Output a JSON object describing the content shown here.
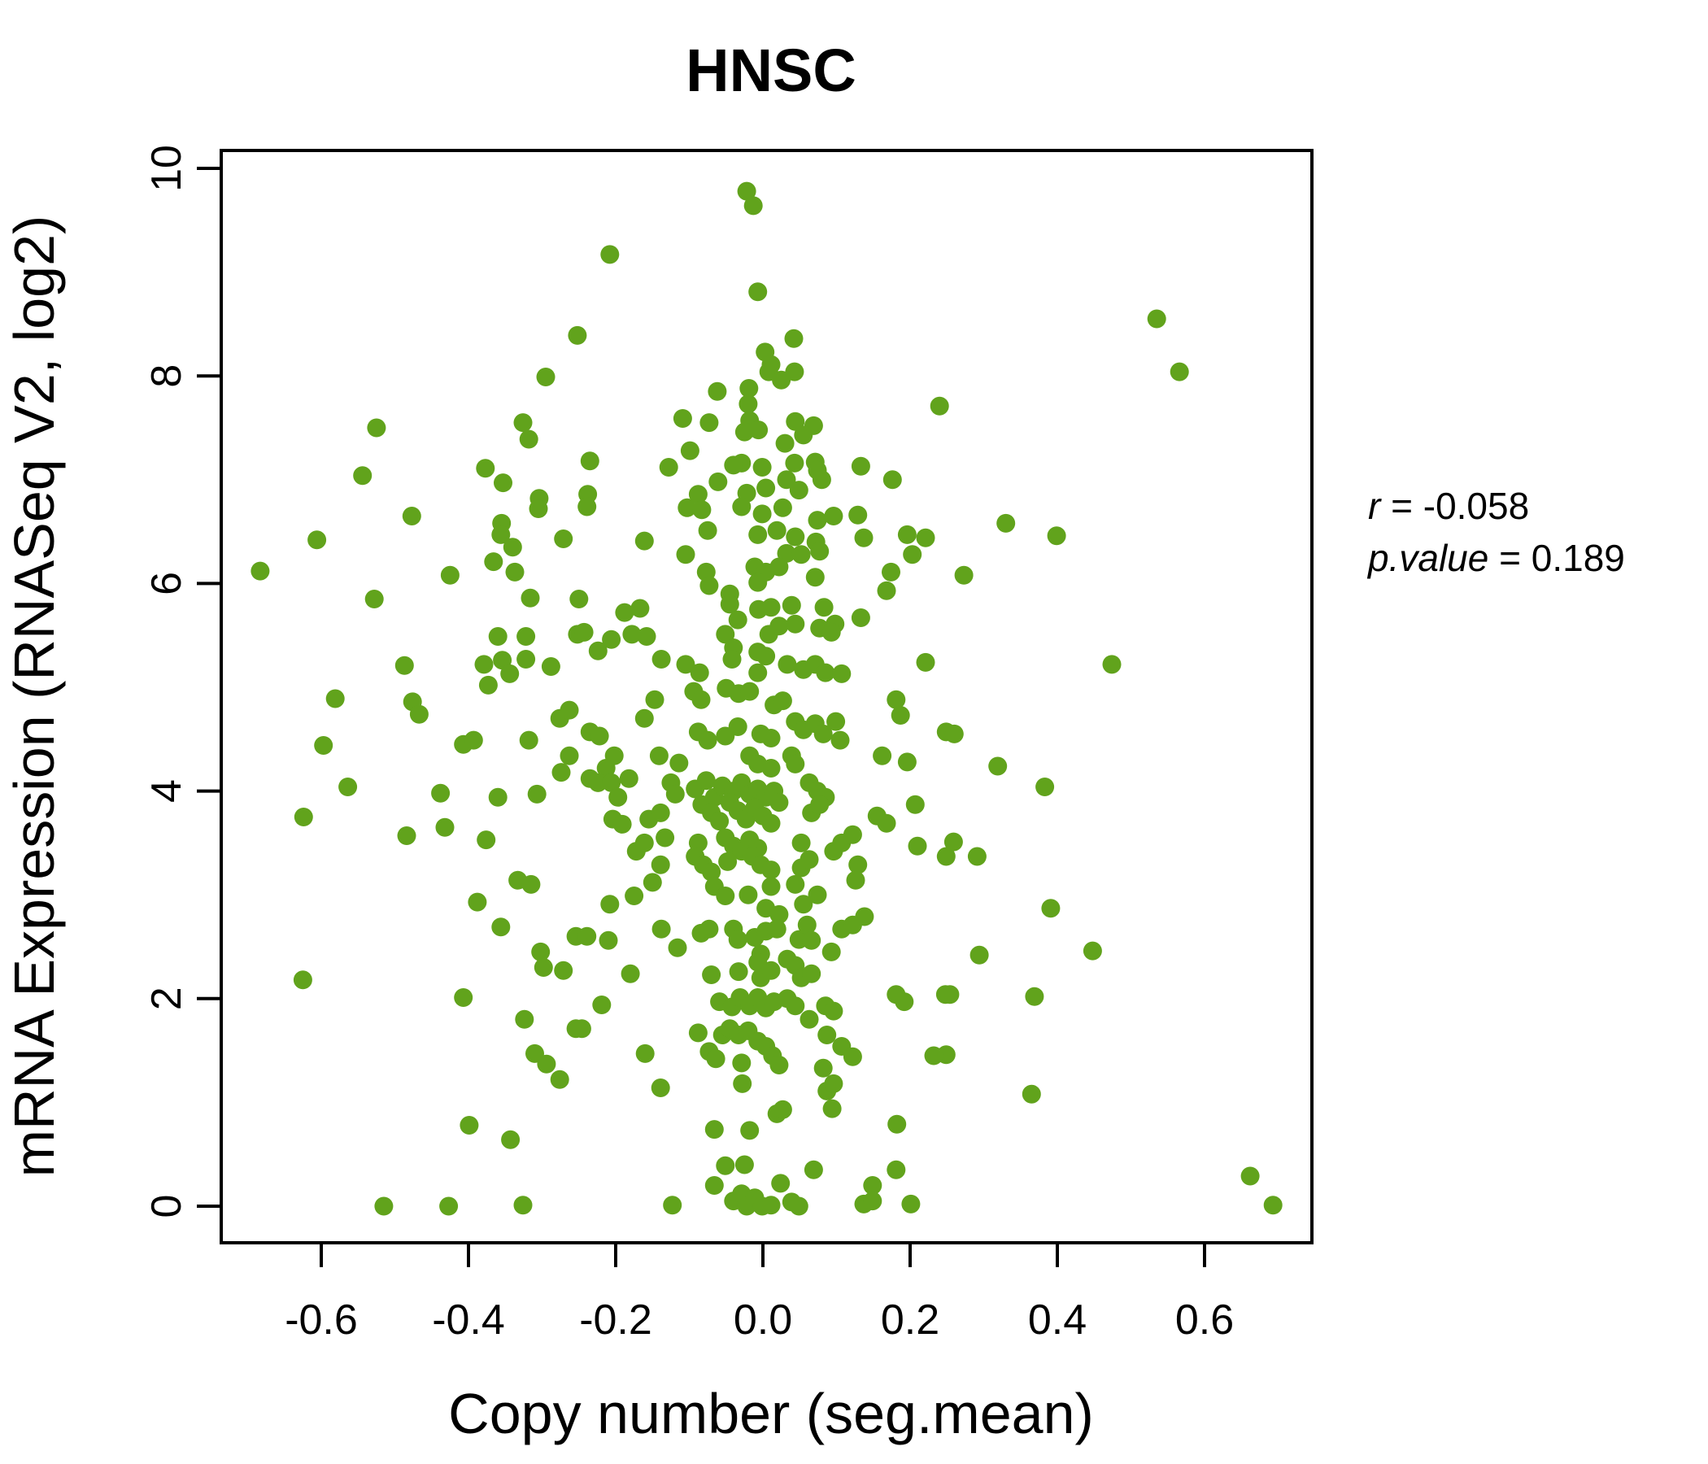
{
  "title": "HNSC",
  "colors": {
    "point": "#61A31C",
    "title": "#6BB12C",
    "axis": "#000000",
    "background": "#FFFFFF"
  },
  "annotation": {
    "r_label": "r",
    "r_rest": " = -0.058",
    "p_label": "p.value",
    "p_rest": " = 0.189"
  },
  "chart_data": {
    "type": "scatter",
    "title": "HNSC",
    "xlabel": "Copy number (seg.mean)",
    "ylabel": "mRNA Expression (RNASeq V2, log2)",
    "xlim": [
      -0.74,
      0.75
    ],
    "ylim": [
      -0.35,
      10.2
    ],
    "grid": false,
    "legend_position": "none",
    "correlation": {
      "r": -0.058,
      "p_value": 0.189
    },
    "xtick_values": [
      -0.6,
      -0.4,
      -0.2,
      0.0,
      0.2,
      0.4,
      0.6
    ],
    "xtick_labels": [
      "-0.6",
      "-0.4",
      "-0.2",
      "0.0",
      "0.2",
      "0.4",
      "0.6"
    ],
    "ytick_values": [
      0,
      2,
      4,
      6,
      8,
      10
    ],
    "ytick_labels": [
      "0",
      "2",
      "4",
      "6",
      "8",
      "10"
    ],
    "points": [
      [
        -0.252,
        8.39
      ],
      [
        -0.295,
        7.99
      ],
      [
        -0.326,
        7.55
      ],
      [
        -0.318,
        7.39
      ],
      [
        -0.525,
        7.5
      ],
      [
        -0.377,
        7.11
      ],
      [
        -0.353,
        6.97
      ],
      [
        -0.544,
        7.04
      ],
      [
        -0.304,
        6.82
      ],
      [
        -0.022,
        9.78
      ],
      [
        -0.013,
        9.64
      ],
      [
        -0.208,
        9.17
      ],
      [
        -0.007,
        8.81
      ],
      [
        0.042,
        8.36
      ],
      [
        0.003,
        8.23
      ],
      [
        0.011,
        8.11
      ],
      [
        0.008,
        8.04
      ],
      [
        0.043,
        8.04
      ],
      [
        0.025,
        7.96
      ],
      [
        -0.062,
        7.85
      ],
      [
        -0.019,
        7.88
      ],
      [
        -0.02,
        7.73
      ],
      [
        -0.109,
        7.59
      ],
      [
        -0.073,
        7.55
      ],
      [
        -0.018,
        7.57
      ],
      [
        -0.006,
        7.48
      ],
      [
        -0.025,
        7.46
      ],
      [
        0.044,
        7.56
      ],
      [
        0.069,
        7.52
      ],
      [
        0.055,
        7.43
      ],
      [
        0.03,
        7.35
      ],
      [
        0.24,
        7.71
      ],
      [
        -0.099,
        7.28
      ],
      [
        -0.235,
        7.18
      ],
      [
        -0.128,
        7.12
      ],
      [
        -0.029,
        7.16
      ],
      [
        -0.001,
        7.12
      ],
      [
        0.043,
        7.16
      ],
      [
        0.071,
        7.17
      ],
      [
        0.074,
        7.09
      ],
      [
        -0.238,
        6.86
      ],
      [
        -0.061,
        6.98
      ],
      [
        -0.04,
        7.14
      ],
      [
        -0.088,
        6.86
      ],
      [
        -0.022,
        6.87
      ],
      [
        0.004,
        6.92
      ],
      [
        0.032,
        7.0
      ],
      [
        0.049,
        6.9
      ],
      [
        0.08,
        7.0
      ],
      [
        0.133,
        7.13
      ],
      [
        0.176,
        7.0
      ],
      [
        0.535,
        8.55
      ],
      [
        0.566,
        8.04
      ],
      [
        -0.477,
        6.65
      ],
      [
        -0.355,
        6.58
      ],
      [
        -0.305,
        6.72
      ],
      [
        -0.356,
        6.47
      ],
      [
        -0.606,
        6.42
      ],
      [
        -0.34,
        6.35
      ],
      [
        -0.271,
        6.43
      ],
      [
        -0.366,
        6.21
      ],
      [
        -0.683,
        6.12
      ],
      [
        -0.425,
        6.08
      ],
      [
        -0.337,
        6.11
      ],
      [
        -0.316,
        5.86
      ],
      [
        -0.25,
        5.85
      ],
      [
        -0.528,
        5.85
      ],
      [
        -0.36,
        5.49
      ],
      [
        -0.322,
        5.49
      ],
      [
        -0.252,
        5.51
      ],
      [
        -0.379,
        5.22
      ],
      [
        -0.354,
        5.26
      ],
      [
        -0.322,
        5.27
      ],
      [
        -0.344,
        5.13
      ],
      [
        -0.288,
        5.2
      ],
      [
        -0.487,
        5.21
      ],
      [
        -0.373,
        5.02
      ],
      [
        -0.581,
        4.89
      ],
      [
        -0.476,
        4.86
      ],
      [
        -0.467,
        4.74
      ],
      [
        -0.276,
        4.7
      ],
      [
        -0.263,
        4.78
      ],
      [
        -0.407,
        4.45
      ],
      [
        -0.393,
        4.49
      ],
      [
        -0.318,
        4.49
      ],
      [
        -0.597,
        4.44
      ],
      [
        -0.274,
        4.18
      ],
      [
        -0.263,
        4.34
      ],
      [
        -0.564,
        4.04
      ],
      [
        -0.438,
        3.98
      ],
      [
        -0.36,
        3.94
      ],
      [
        -0.307,
        3.97
      ],
      [
        -0.624,
        3.75
      ],
      [
        -0.432,
        3.65
      ],
      [
        -0.376,
        3.53
      ],
      [
        -0.484,
        3.57
      ],
      [
        -0.239,
        6.74
      ],
      [
        -0.103,
        6.73
      ],
      [
        -0.083,
        6.71
      ],
      [
        -0.029,
        6.74
      ],
      [
        -0.001,
        6.67
      ],
      [
        0.027,
        6.73
      ],
      [
        0.074,
        6.61
      ],
      [
        0.096,
        6.65
      ],
      [
        0.129,
        6.66
      ],
      [
        -0.161,
        6.41
      ],
      [
        -0.075,
        6.51
      ],
      [
        -0.007,
        6.47
      ],
      [
        0.019,
        6.51
      ],
      [
        0.044,
        6.45
      ],
      [
        0.072,
        6.4
      ],
      [
        0.137,
        6.44
      ],
      [
        0.196,
        6.47
      ],
      [
        0.221,
        6.44
      ],
      [
        -0.105,
        6.28
      ],
      [
        0.032,
        6.29
      ],
      [
        0.052,
        6.28
      ],
      [
        0.077,
        6.31
      ],
      [
        0.203,
        6.28
      ],
      [
        -0.077,
        6.11
      ],
      [
        -0.011,
        6.16
      ],
      [
        0.004,
        6.11
      ],
      [
        0.022,
        6.16
      ],
      [
        0.071,
        6.06
      ],
      [
        0.174,
        6.11
      ],
      [
        -0.073,
        5.98
      ],
      [
        -0.045,
        5.9
      ],
      [
        -0.007,
        6.01
      ],
      [
        0.168,
        5.93
      ],
      [
        -0.188,
        5.72
      ],
      [
        -0.167,
        5.76
      ],
      [
        -0.045,
        5.8
      ],
      [
        -0.034,
        5.65
      ],
      [
        -0.006,
        5.75
      ],
      [
        0.011,
        5.77
      ],
      [
        0.039,
        5.79
      ],
      [
        0.083,
        5.77
      ],
      [
        0.098,
        5.61
      ],
      [
        0.133,
        5.67
      ],
      [
        -0.243,
        5.53
      ],
      [
        -0.206,
        5.46
      ],
      [
        -0.224,
        5.35
      ],
      [
        -0.178,
        5.51
      ],
      [
        -0.158,
        5.49
      ],
      [
        -0.051,
        5.51
      ],
      [
        -0.04,
        5.38
      ],
      [
        -0.007,
        5.34
      ],
      [
        0.008,
        5.51
      ],
      [
        0.022,
        5.59
      ],
      [
        0.044,
        5.61
      ],
      [
        0.077,
        5.57
      ],
      [
        0.093,
        5.53
      ],
      [
        -0.138,
        5.27
      ],
      [
        -0.105,
        5.22
      ],
      [
        -0.086,
        5.14
      ],
      [
        -0.042,
        5.27
      ],
      [
        -0.007,
        5.14
      ],
      [
        0.004,
        5.3
      ],
      [
        0.033,
        5.22
      ],
      [
        0.055,
        5.17
      ],
      [
        0.071,
        5.22
      ],
      [
        0.085,
        5.14
      ],
      [
        0.107,
        5.13
      ],
      [
        0.221,
        5.24
      ],
      [
        -0.094,
        4.96
      ],
      [
        -0.084,
        4.88
      ],
      [
        -0.05,
        4.99
      ],
      [
        -0.033,
        4.94
      ],
      [
        -0.018,
        4.96
      ],
      [
        0.015,
        4.83
      ],
      [
        0.027,
        4.87
      ],
      [
        -0.147,
        4.88
      ],
      [
        -0.161,
        4.7
      ],
      [
        0.181,
        4.88
      ],
      [
        0.187,
        4.73
      ],
      [
        -0.235,
        4.57
      ],
      [
        -0.222,
        4.53
      ],
      [
        -0.088,
        4.57
      ],
      [
        -0.075,
        4.49
      ],
      [
        -0.051,
        4.53
      ],
      [
        -0.034,
        4.62
      ],
      [
        -0.003,
        4.55
      ],
      [
        0.011,
        4.51
      ],
      [
        0.044,
        4.67
      ],
      [
        0.055,
        4.59
      ],
      [
        0.071,
        4.65
      ],
      [
        0.082,
        4.55
      ],
      [
        0.099,
        4.67
      ],
      [
        0.105,
        4.49
      ],
      [
        0.249,
        4.57
      ],
      [
        -0.202,
        4.34
      ],
      [
        -0.213,
        4.22
      ],
      [
        -0.141,
        4.34
      ],
      [
        -0.114,
        4.27
      ],
      [
        -0.018,
        4.34
      ],
      [
        -0.007,
        4.26
      ],
      [
        0.011,
        4.22
      ],
      [
        0.039,
        4.34
      ],
      [
        0.044,
        4.26
      ],
      [
        0.162,
        4.34
      ],
      [
        0.196,
        4.28
      ],
      [
        -0.235,
        4.12
      ],
      [
        -0.224,
        4.08
      ],
      [
        -0.206,
        4.08
      ],
      [
        -0.197,
        3.94
      ],
      [
        -0.182,
        4.12
      ],
      [
        -0.125,
        4.08
      ],
      [
        -0.119,
        3.97
      ],
      [
        -0.092,
        4.02
      ],
      [
        -0.077,
        4.1
      ],
      [
        -0.066,
        3.94
      ],
      [
        -0.055,
        4.05
      ],
      [
        -0.04,
        4.0
      ],
      [
        -0.029,
        4.08
      ],
      [
        -0.018,
        3.97
      ],
      [
        -0.007,
        4.02
      ],
      [
        0.004,
        3.94
      ],
      [
        0.015,
        4.0
      ],
      [
        0.063,
        4.08
      ],
      [
        0.074,
        4.0
      ],
      [
        0.085,
        3.94
      ],
      [
        -0.204,
        3.73
      ],
      [
        -0.191,
        3.68
      ],
      [
        -0.155,
        3.73
      ],
      [
        -0.139,
        3.79
      ],
      [
        -0.083,
        3.87
      ],
      [
        -0.07,
        3.79
      ],
      [
        -0.059,
        3.71
      ],
      [
        -0.045,
        3.89
      ],
      [
        -0.034,
        3.81
      ],
      [
        -0.023,
        3.73
      ],
      [
        -0.011,
        3.84
      ],
      [
        0.0,
        3.76
      ],
      [
        0.011,
        3.69
      ],
      [
        0.022,
        3.89
      ],
      [
        0.066,
        3.79
      ],
      [
        0.077,
        3.87
      ],
      [
        0.155,
        3.76
      ],
      [
        0.168,
        3.69
      ],
      [
        0.207,
        3.87
      ],
      [
        -0.172,
        3.42
      ],
      [
        -0.161,
        3.5
      ],
      [
        -0.133,
        3.55
      ],
      [
        -0.088,
        3.5
      ],
      [
        -0.051,
        3.55
      ],
      [
        -0.04,
        3.47
      ],
      [
        -0.029,
        3.42
      ],
      [
        -0.018,
        3.53
      ],
      [
        -0.007,
        3.45
      ],
      [
        0.052,
        3.5
      ],
      [
        0.096,
        3.42
      ],
      [
        0.107,
        3.5
      ],
      [
        0.122,
        3.58
      ],
      [
        0.21,
        3.47
      ],
      [
        -0.139,
        3.29
      ],
      [
        -0.092,
        3.37
      ],
      [
        -0.081,
        3.29
      ],
      [
        -0.07,
        3.22
      ],
      [
        -0.048,
        3.32
      ],
      [
        -0.014,
        3.37
      ],
      [
        -0.003,
        3.29
      ],
      [
        0.011,
        3.24
      ],
      [
        0.052,
        3.26
      ],
      [
        0.063,
        3.34
      ],
      [
        0.129,
        3.29
      ],
      [
        0.249,
        3.37
      ],
      [
        0.33,
        6.58
      ],
      [
        0.399,
        6.46
      ],
      [
        0.273,
        6.08
      ],
      [
        0.474,
        5.22
      ],
      [
        0.26,
        4.55
      ],
      [
        0.319,
        4.24
      ],
      [
        0.383,
        4.04
      ],
      [
        0.259,
        3.51
      ],
      [
        0.291,
        3.37
      ],
      [
        -0.333,
        3.14
      ],
      [
        -0.315,
        3.1
      ],
      [
        -0.388,
        2.93
      ],
      [
        -0.356,
        2.69
      ],
      [
        -0.254,
        2.6
      ],
      [
        -0.302,
        2.45
      ],
      [
        -0.298,
        2.3
      ],
      [
        -0.271,
        2.27
      ],
      [
        -0.625,
        2.18
      ],
      [
        -0.407,
        2.01
      ],
      [
        -0.324,
        1.8
      ],
      [
        -0.254,
        1.71
      ],
      [
        -0.31,
        1.47
      ],
      [
        -0.294,
        1.37
      ],
      [
        -0.276,
        1.22
      ],
      [
        -0.399,
        0.78
      ],
      [
        -0.343,
        0.64
      ],
      [
        -0.515,
        0.0
      ],
      [
        -0.427,
        0.0
      ],
      [
        -0.326,
        0.01
      ],
      [
        -0.208,
        2.91
      ],
      [
        -0.175,
        2.99
      ],
      [
        -0.15,
        3.12
      ],
      [
        -0.066,
        3.08
      ],
      [
        -0.051,
        2.99
      ],
      [
        -0.02,
        3.0
      ],
      [
        0.004,
        2.87
      ],
      [
        0.011,
        3.08
      ],
      [
        0.022,
        2.81
      ],
      [
        0.044,
        3.1
      ],
      [
        0.055,
        2.91
      ],
      [
        0.074,
        3.0
      ],
      [
        0.126,
        3.14
      ],
      [
        -0.239,
        2.6
      ],
      [
        -0.21,
        2.56
      ],
      [
        -0.138,
        2.67
      ],
      [
        -0.116,
        2.49
      ],
      [
        -0.084,
        2.63
      ],
      [
        -0.073,
        2.67
      ],
      [
        -0.04,
        2.67
      ],
      [
        -0.034,
        2.57
      ],
      [
        -0.011,
        2.59
      ],
      [
        -0.003,
        2.43
      ],
      [
        0.004,
        2.65
      ],
      [
        0.019,
        2.67
      ],
      [
        0.049,
        2.57
      ],
      [
        0.06,
        2.71
      ],
      [
        0.066,
        2.56
      ],
      [
        0.093,
        2.45
      ],
      [
        0.107,
        2.67
      ],
      [
        0.122,
        2.71
      ],
      [
        0.138,
        2.79
      ],
      [
        -0.18,
        2.24
      ],
      [
        -0.07,
        2.23
      ],
      [
        -0.033,
        2.26
      ],
      [
        -0.007,
        2.35
      ],
      [
        -0.003,
        2.2
      ],
      [
        0.011,
        2.27
      ],
      [
        0.033,
        2.38
      ],
      [
        0.044,
        2.32
      ],
      [
        0.052,
        2.2
      ],
      [
        0.066,
        2.24
      ],
      [
        0.181,
        2.04
      ],
      [
        0.192,
        1.97
      ],
      [
        -0.219,
        1.94
      ],
      [
        -0.059,
        1.97
      ],
      [
        -0.042,
        1.92
      ],
      [
        -0.031,
        2.01
      ],
      [
        -0.018,
        1.93
      ],
      [
        -0.007,
        2.01
      ],
      [
        0.004,
        1.91
      ],
      [
        0.015,
        1.97
      ],
      [
        0.033,
        2.0
      ],
      [
        0.044,
        1.93
      ],
      [
        0.063,
        1.8
      ],
      [
        0.085,
        1.93
      ],
      [
        0.096,
        1.88
      ],
      [
        0.248,
        2.04
      ],
      [
        0.249,
        1.46
      ],
      [
        -0.246,
        1.71
      ],
      [
        -0.088,
        1.67
      ],
      [
        -0.055,
        1.65
      ],
      [
        -0.045,
        1.71
      ],
      [
        -0.033,
        1.65
      ],
      [
        -0.02,
        1.69
      ],
      [
        -0.007,
        1.59
      ],
      [
        0.087,
        1.65
      ],
      [
        0.107,
        1.54
      ],
      [
        0.122,
        1.44
      ],
      [
        -0.16,
        1.47
      ],
      [
        -0.073,
        1.49
      ],
      [
        -0.064,
        1.42
      ],
      [
        -0.029,
        1.38
      ],
      [
        0.004,
        1.54
      ],
      [
        0.013,
        1.45
      ],
      [
        0.022,
        1.36
      ],
      [
        0.082,
        1.33
      ],
      [
        0.232,
        1.45
      ],
      [
        -0.139,
        1.14
      ],
      [
        -0.028,
        1.18
      ],
      [
        0.087,
        1.11
      ],
      [
        0.096,
        1.18
      ],
      [
        0.019,
        0.89
      ],
      [
        0.027,
        0.93
      ],
      [
        0.094,
        0.94
      ],
      [
        -0.066,
        0.74
      ],
      [
        -0.018,
        0.73
      ],
      [
        0.182,
        0.79
      ],
      [
        -0.051,
        0.39
      ],
      [
        -0.025,
        0.4
      ],
      [
        0.069,
        0.35
      ],
      [
        0.181,
        0.35
      ],
      [
        -0.066,
        0.2
      ],
      [
        0.024,
        0.22
      ],
      [
        0.149,
        0.2
      ],
      [
        -0.123,
        0.01
      ],
      [
        -0.04,
        0.05
      ],
      [
        -0.029,
        0.12
      ],
      [
        -0.022,
        0.0
      ],
      [
        -0.011,
        0.08
      ],
      [
        -0.001,
        0.0
      ],
      [
        0.011,
        0.01
      ],
      [
        0.039,
        0.04
      ],
      [
        0.049,
        0.0
      ],
      [
        0.137,
        0.02
      ],
      [
        0.149,
        0.05
      ],
      [
        0.201,
        0.02
      ],
      [
        0.391,
        2.87
      ],
      [
        0.294,
        2.42
      ],
      [
        0.448,
        2.46
      ],
      [
        0.254,
        2.04
      ],
      [
        0.369,
        2.02
      ],
      [
        0.365,
        1.08
      ],
      [
        0.662,
        0.29
      ],
      [
        0.693,
        0.01
      ]
    ]
  }
}
